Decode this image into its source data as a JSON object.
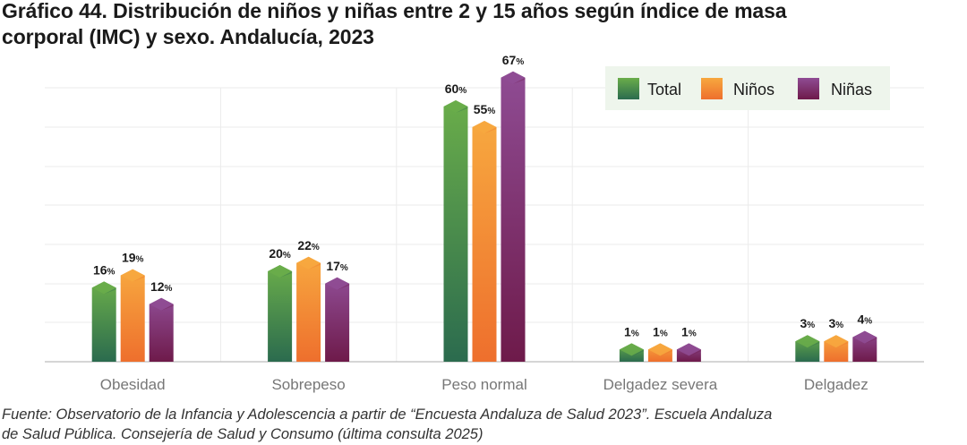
{
  "title_line1": "Gráfico 44. Distribución de niños y niñas entre 2 y 15 años según índice de masa",
  "title_line2": "corporal (IMC) y sexo. Andalucía, 2023",
  "source_line1": "Fuente: Observatorio de la Infancia y Adolescencia a partir de “Encuesta Andaluza de Salud 2023”. Escuela Andaluza",
  "source_line2": "de Salud Pública. Consejería de Salud y Consumo (última consulta 2025)",
  "chart_data": {
    "type": "bar",
    "title": "Gráfico 44. Distribución de niños y niñas entre 2 y 15 años según índice de masa corporal (IMC) y sexo. Andalucía, 2023",
    "categories": [
      "Obesidad",
      "Sobrepeso",
      "Peso normal",
      "Delgadez severa",
      "Delgadez"
    ],
    "series": [
      {
        "name": "Total",
        "values": [
          16,
          20,
          60,
          1,
          3
        ],
        "color_top": "#6aad4a",
        "color_bottom": "#2b6b4e"
      },
      {
        "name": "Niños",
        "values": [
          19,
          22,
          55,
          1,
          3
        ],
        "color_top": "#f7a83f",
        "color_bottom": "#ee6f2d"
      },
      {
        "name": "Niñas",
        "values": [
          12,
          17,
          67,
          1,
          4
        ],
        "color_top": "#8f4c94",
        "color_bottom": "#6e1a4a"
      }
    ],
    "value_suffix": "%",
    "ylim": [
      0,
      70
    ],
    "grid": true,
    "legend_position": "top-right",
    "legend_background": "#eef5ec",
    "xlabel": "",
    "ylabel": ""
  }
}
